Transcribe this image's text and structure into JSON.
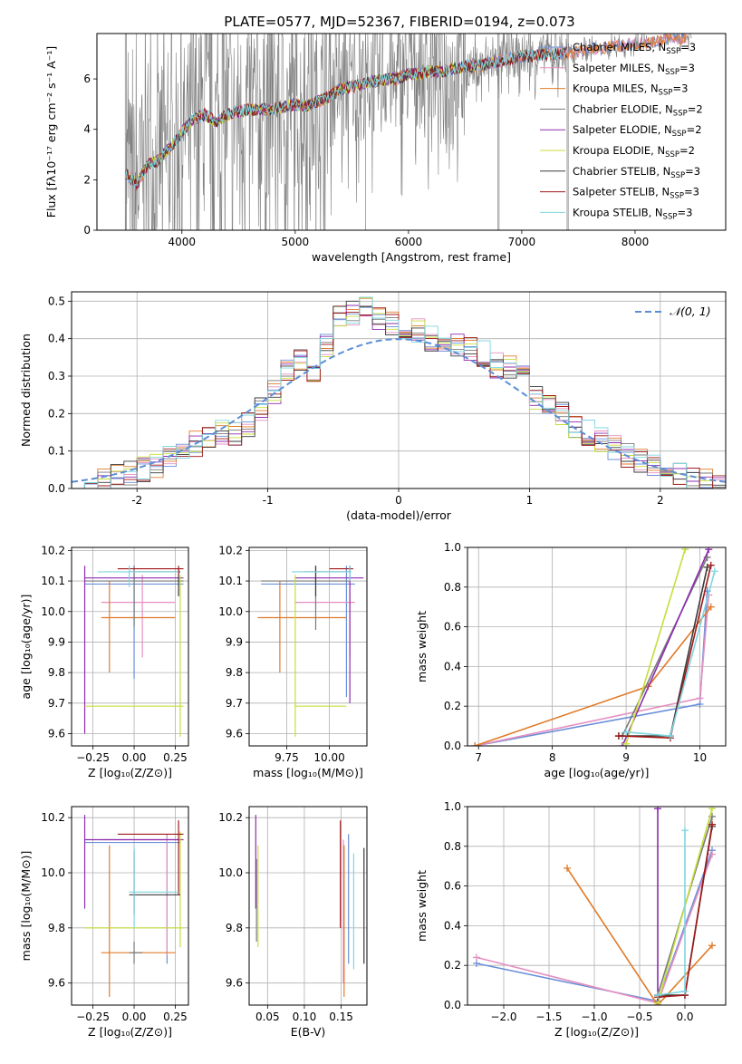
{
  "figure_title": "PLATE=0577, MJD=52367, FIBERID=0194, z=0.073",
  "colors": {
    "chabrier_miles": "#6a8fd8",
    "salpeter_miles": "#e58fc0",
    "kroupa_miles": "#e07b2a",
    "chabrier_elodie": "#7a7a7a",
    "salpeter_elodie": "#8e2db0",
    "kroupa_elodie": "#c8dd3a",
    "chabrier_stelib": "#3a3a3a",
    "salpeter_stelib": "#a01818",
    "kroupa_stelib": "#7fd6e0",
    "data": "#808080",
    "normal": "#5b8ed6"
  },
  "chart_data": [
    {
      "id": "spectrum",
      "type": "line",
      "title": "PLATE=0577, MJD=52367, FIBERID=0194, z=0.073",
      "xlabel": "wavelength [Angstrom, rest frame]",
      "ylabel": "Flux [fλ10⁻¹⁷ erg cm⁻² s⁻¹ A⁻¹]",
      "xlim": [
        3250,
        8800
      ],
      "ylim": [
        0,
        7.8
      ],
      "xticks": [
        4000,
        5000,
        6000,
        7000,
        8000
      ],
      "yticks": [
        0,
        2,
        4,
        6
      ],
      "legend_position": "right",
      "legend": [
        {
          "label": "Chabrier MILES, NSSP=3",
          "color_key": "chabrier_miles"
        },
        {
          "label": "Salpeter MILES, NSSP=3",
          "color_key": "salpeter_miles"
        },
        {
          "label": "Kroupa MILES, NSSP=3",
          "color_key": "kroupa_miles"
        },
        {
          "label": "Chabrier ELODIE, NSSP=2",
          "color_key": "chabrier_elodie"
        },
        {
          "label": "Salpeter ELODIE, NSSP=2",
          "color_key": "salpeter_elodie"
        },
        {
          "label": "Kroupa ELODIE, NSSP=2",
          "color_key": "kroupa_elodie"
        },
        {
          "label": "Chabrier STELIB, NSSP=3",
          "color_key": "chabrier_stelib"
        },
        {
          "label": "Salpeter STELIB, NSSP=3",
          "color_key": "salpeter_stelib"
        },
        {
          "label": "Kroupa STELIB, NSSP=3",
          "color_key": "kroupa_stelib"
        }
      ],
      "model_continuum": [
        [
          3500,
          2.3
        ],
        [
          3600,
          1.8
        ],
        [
          3700,
          2.6
        ],
        [
          3800,
          2.8
        ],
        [
          3900,
          3.3
        ],
        [
          3950,
          3.6
        ],
        [
          4000,
          3.9
        ],
        [
          4100,
          4.4
        ],
        [
          4200,
          4.6
        ],
        [
          4300,
          4.3
        ],
        [
          4400,
          4.6
        ],
        [
          4500,
          4.7
        ],
        [
          4600,
          4.8
        ],
        [
          4700,
          4.8
        ],
        [
          4800,
          4.8
        ],
        [
          4900,
          4.9
        ],
        [
          5000,
          5.0
        ],
        [
          5100,
          4.9
        ],
        [
          5200,
          5.1
        ],
        [
          5300,
          5.3
        ],
        [
          5400,
          5.6
        ],
        [
          5500,
          5.7
        ],
        [
          5600,
          5.8
        ],
        [
          5700,
          5.9
        ],
        [
          5800,
          6.0
        ],
        [
          5900,
          6.0
        ],
        [
          6000,
          6.2
        ],
        [
          6100,
          6.2
        ],
        [
          6200,
          6.3
        ],
        [
          6300,
          6.3
        ],
        [
          6400,
          6.4
        ],
        [
          6500,
          6.5
        ],
        [
          6600,
          6.5
        ],
        [
          6700,
          6.6
        ],
        [
          6800,
          6.7
        ],
        [
          6900,
          6.8
        ],
        [
          7000,
          6.9
        ],
        [
          7100,
          6.9
        ],
        [
          7200,
          7.0
        ],
        [
          7300,
          7.0
        ],
        [
          7400,
          7.0
        ],
        [
          7500,
          7.1
        ],
        [
          7600,
          7.2
        ],
        [
          7700,
          7.2
        ],
        [
          7800,
          7.3
        ],
        [
          7900,
          7.3
        ],
        [
          8000,
          7.4
        ],
        [
          8100,
          7.4
        ],
        [
          8200,
          7.5
        ],
        [
          8300,
          7.6
        ],
        [
          8400,
          7.6
        ],
        [
          8500,
          7.7
        ]
      ]
    },
    {
      "id": "residuals",
      "type": "bar",
      "xlabel": "(data-model)/error",
      "ylabel": "Normed distribution",
      "xlim": [
        -2.5,
        2.5
      ],
      "ylim": [
        0,
        0.525
      ],
      "xticks": [
        -2,
        -1,
        0,
        1,
        2
      ],
      "yticks": [
        0.0,
        0.1,
        0.2,
        0.3,
        0.4,
        0.5
      ],
      "bin_edges": [
        -2.5,
        -2.4,
        -2.3,
        -2.2,
        -2.1,
        -2.0,
        -1.9,
        -1.8,
        -1.7,
        -1.6,
        -1.5,
        -1.4,
        -1.3,
        -1.2,
        -1.1,
        -1.0,
        -0.9,
        -0.8,
        -0.7,
        -0.6,
        -0.5,
        -0.4,
        -0.3,
        -0.2,
        -0.1,
        0.0,
        0.1,
        0.2,
        0.3,
        0.4,
        0.5,
        0.6,
        0.7,
        0.8,
        0.9,
        1.0,
        1.1,
        1.2,
        1.3,
        1.4,
        1.5,
        1.6,
        1.7,
        1.8,
        1.9,
        2.0,
        2.1,
        2.2,
        2.3,
        2.4,
        2.5
      ],
      "hist_heights": [
        0.005,
        0.01,
        0.02,
        0.03,
        0.04,
        0.05,
        0.06,
        0.08,
        0.11,
        0.12,
        0.14,
        0.15,
        0.15,
        0.17,
        0.21,
        0.26,
        0.31,
        0.35,
        0.32,
        0.38,
        0.46,
        0.47,
        0.48,
        0.45,
        0.44,
        0.43,
        0.42,
        0.4,
        0.39,
        0.38,
        0.37,
        0.36,
        0.33,
        0.32,
        0.3,
        0.24,
        0.22,
        0.2,
        0.16,
        0.15,
        0.13,
        0.11,
        0.09,
        0.07,
        0.06,
        0.05,
        0.04,
        0.03,
        0.02,
        0.01
      ],
      "legend": [
        {
          "label": "𝒩(0, 1)",
          "color_key": "normal"
        }
      ],
      "legend_position": "top-right"
    },
    {
      "id": "age-vs-Z",
      "type": "errorbar",
      "xlabel": "Z [log₁₀(Z/Z⊙)]",
      "ylabel": "age  [log₁₀(age/yr)]",
      "xlim": [
        -0.38,
        0.33
      ],
      "ylim": [
        9.56,
        10.21
      ],
      "xticks": [
        -0.25,
        0.0,
        0.25
      ],
      "xticklabels": [
        "−0.25",
        "0.00",
        "0.25"
      ],
      "yticks": [
        9.6,
        9.7,
        9.8,
        9.9,
        10.0,
        10.1,
        10.2
      ],
      "points": [
        {
          "color_key": "chabrier_miles",
          "x": 0.0,
          "xlo": -0.3,
          "xhi": 0.3,
          "y": 10.09,
          "ylo": 9.78,
          "yhi": 10.15
        },
        {
          "color_key": "salpeter_miles",
          "x": 0.05,
          "xlo": -0.2,
          "xhi": 0.25,
          "y": 10.03,
          "ylo": 9.85,
          "yhi": 10.12
        },
        {
          "color_key": "kroupa_miles",
          "x": -0.15,
          "xlo": -0.2,
          "xhi": 0.25,
          "y": 9.98,
          "ylo": 9.8,
          "yhi": 10.1
        },
        {
          "color_key": "chabrier_elodie",
          "x": 0.0,
          "xlo": -0.3,
          "xhi": 0.3,
          "y": 10.1,
          "ylo": 9.95,
          "yhi": 10.15
        },
        {
          "color_key": "salpeter_elodie",
          "x": -0.3,
          "xlo": -0.3,
          "xhi": 0.3,
          "y": 10.11,
          "ylo": 9.6,
          "yhi": 10.15
        },
        {
          "color_key": "kroupa_elodie",
          "x": 0.28,
          "xlo": -0.3,
          "xhi": 0.3,
          "y": 9.69,
          "ylo": 9.59,
          "yhi": 10.12
        },
        {
          "color_key": "chabrier_stelib",
          "x": 0.27,
          "xlo": -0.03,
          "xhi": 0.28,
          "y": 10.13,
          "ylo": 10.05,
          "yhi": 10.14
        },
        {
          "color_key": "salpeter_stelib",
          "x": 0.27,
          "xlo": -0.1,
          "xhi": 0.3,
          "y": 10.14,
          "ylo": 10.12,
          "yhi": 10.15
        },
        {
          "color_key": "kroupa_stelib",
          "x": -0.03,
          "xlo": -0.22,
          "xhi": 0.27,
          "y": 10.13,
          "ylo": 10.08,
          "yhi": 10.15
        }
      ]
    },
    {
      "id": "age-vs-mass",
      "type": "errorbar",
      "xlabel": "mass [log₁₀(M/M⊙)]",
      "xlim": [
        9.53,
        10.22
      ],
      "ylim": [
        9.56,
        10.21
      ],
      "xticks": [
        9.75,
        10.0
      ],
      "xticklabels": [
        "9.75",
        "10.00"
      ],
      "yticks": [
        9.6,
        9.7,
        9.8,
        9.9,
        10.0,
        10.1,
        10.2
      ],
      "points": [
        {
          "color_key": "chabrier_miles",
          "x": 10.1,
          "xlo": 9.6,
          "xhi": 10.15,
          "y": 10.09,
          "ylo": 9.72,
          "yhi": 10.15
        },
        {
          "color_key": "salpeter_miles",
          "x": 10.12,
          "xlo": 9.8,
          "xhi": 10.15,
          "y": 10.03,
          "ylo": 9.85,
          "yhi": 10.12
        },
        {
          "color_key": "kroupa_miles",
          "x": 9.71,
          "xlo": 9.58,
          "xhi": 10.1,
          "y": 9.98,
          "ylo": 9.8,
          "yhi": 10.1
        },
        {
          "color_key": "chabrier_elodie",
          "x": 9.92,
          "xlo": 9.6,
          "xhi": 10.12,
          "y": 10.1,
          "ylo": 9.94,
          "yhi": 10.15
        },
        {
          "color_key": "salpeter_elodie",
          "x": 10.12,
          "xlo": 9.8,
          "xhi": 10.2,
          "y": 10.11,
          "ylo": 9.7,
          "yhi": 10.15
        },
        {
          "color_key": "kroupa_elodie",
          "x": 9.8,
          "xlo": 9.8,
          "xhi": 10.1,
          "y": 9.69,
          "ylo": 9.59,
          "yhi": 10.12
        },
        {
          "color_key": "chabrier_stelib",
          "x": 9.92,
          "xlo": 9.85,
          "xhi": 10.12,
          "y": 10.13,
          "ylo": 10.05,
          "yhi": 10.15
        },
        {
          "color_key": "salpeter_stelib",
          "x": 10.12,
          "xlo": 10.0,
          "xhi": 10.14,
          "y": 10.14,
          "ylo": 10.13,
          "yhi": 10.15
        },
        {
          "color_key": "kroupa_stelib",
          "x": 10.12,
          "xlo": 9.78,
          "xhi": 10.13,
          "y": 10.13,
          "ylo": 10.1,
          "yhi": 10.15
        }
      ]
    },
    {
      "id": "weight-vs-age",
      "type": "line",
      "xlabel": "age  [log₁₀(age/yr)]",
      "ylabel": "mass weight",
      "xlim": [
        6.85,
        10.35
      ],
      "ylim": [
        0,
        1
      ],
      "xticks": [
        7,
        8,
        9,
        10
      ],
      "yticks": [
        0.0,
        0.2,
        0.4,
        0.6,
        0.8,
        1.0
      ],
      "series": [
        {
          "color_key": "chabrier_miles",
          "x": [
            6.95,
            10.0,
            10.1
          ],
          "y": [
            0.0,
            0.21,
            0.78
          ]
        },
        {
          "color_key": "salpeter_miles",
          "x": [
            6.95,
            10.0,
            10.12
          ],
          "y": [
            0.0,
            0.24,
            0.76
          ]
        },
        {
          "color_key": "kroupa_miles",
          "x": [
            6.95,
            9.3,
            10.15
          ],
          "y": [
            0.0,
            0.3,
            0.7
          ]
        },
        {
          "color_key": "chabrier_elodie",
          "x": [
            8.95,
            10.1
          ],
          "y": [
            0.05,
            0.95
          ]
        },
        {
          "color_key": "salpeter_elodie",
          "x": [
            8.95,
            10.12
          ],
          "y": [
            0.0,
            0.99
          ]
        },
        {
          "color_key": "kroupa_elodie",
          "x": [
            9.0,
            9.8
          ],
          "y": [
            0.01,
            0.99
          ]
        },
        {
          "color_key": "chabrier_stelib",
          "x": [
            8.9,
            9.6,
            10.1
          ],
          "y": [
            0.05,
            0.05,
            0.9
          ]
        },
        {
          "color_key": "salpeter_stelib",
          "x": [
            8.9,
            9.6,
            10.15
          ],
          "y": [
            0.05,
            0.04,
            0.91
          ]
        },
        {
          "color_key": "kroupa_stelib",
          "x": [
            9.0,
            9.6,
            10.2
          ],
          "y": [
            0.07,
            0.05,
            0.88
          ]
        }
      ]
    },
    {
      "id": "mass-vs-Z",
      "type": "errorbar",
      "xlabel": "Z [log₁₀(Z/Z⊙)]",
      "ylabel": "mass [log₁₀(M/M⊙)]",
      "xlim": [
        -0.38,
        0.33
      ],
      "ylim": [
        9.52,
        10.24
      ],
      "xticks": [
        -0.25,
        0.0,
        0.25
      ],
      "xticklabels": [
        "−0.25",
        "0.00",
        "0.25"
      ],
      "yticks": [
        9.6,
        9.8,
        10.0,
        10.2
      ],
      "points": [
        {
          "color_key": "chabrier_miles",
          "x": 0.2,
          "xlo": -0.3,
          "xhi": 0.28,
          "y": 10.11,
          "ylo": 9.67,
          "yhi": 10.14
        },
        {
          "color_key": "salpeter_miles",
          "x": 0.2,
          "xlo": -0.2,
          "xhi": 0.28,
          "y": 10.12,
          "ylo": 9.7,
          "yhi": 10.14
        },
        {
          "color_key": "kroupa_miles",
          "x": -0.15,
          "xlo": -0.2,
          "xhi": 0.25,
          "y": 9.71,
          "ylo": 9.55,
          "yhi": 10.1
        },
        {
          "color_key": "chabrier_elodie",
          "x": 0.0,
          "xlo": -0.03,
          "xhi": 0.05,
          "y": 9.71,
          "ylo": 9.67,
          "yhi": 9.75
        },
        {
          "color_key": "salpeter_elodie",
          "x": -0.3,
          "xlo": -0.3,
          "xhi": 0.3,
          "y": 10.12,
          "ylo": 9.87,
          "yhi": 10.21
        },
        {
          "color_key": "kroupa_elodie",
          "x": 0.28,
          "xlo": -0.3,
          "xhi": 0.3,
          "y": 9.8,
          "ylo": 9.73,
          "yhi": 10.15
        },
        {
          "color_key": "chabrier_stelib",
          "x": 0.0,
          "xlo": -0.03,
          "xhi": 0.28,
          "y": 9.92,
          "ylo": 9.85,
          "yhi": 10.08
        },
        {
          "color_key": "salpeter_stelib",
          "x": 0.27,
          "xlo": -0.1,
          "xhi": 0.3,
          "y": 10.14,
          "ylo": 9.92,
          "yhi": 10.19
        },
        {
          "color_key": "kroupa_stelib",
          "x": 0.0,
          "xlo": -0.03,
          "xhi": 0.27,
          "y": 9.93,
          "ylo": 9.8,
          "yhi": 10.1
        }
      ]
    },
    {
      "id": "mass-vs-ebv",
      "type": "errorbar",
      "xlabel": "E(B-V)",
      "xlim": [
        0.025,
        0.185
      ],
      "ylim": [
        9.52,
        10.24
      ],
      "xticks": [
        0.05,
        0.1,
        0.15
      ],
      "xticklabels": [
        "0.05",
        "0.10",
        "0.15"
      ],
      "yticks": [
        9.6,
        9.8,
        10.0,
        10.2
      ],
      "points": [
        {
          "color_key": "chabrier_miles",
          "x": 0.16,
          "ylo": 9.67,
          "yhi": 10.14
        },
        {
          "color_key": "salpeter_miles",
          "x": 0.153,
          "ylo": 9.6,
          "yhi": 10.12
        },
        {
          "color_key": "kroupa_miles",
          "x": 0.154,
          "ylo": 9.55,
          "yhi": 10.1
        },
        {
          "color_key": "chabrier_elodie",
          "x": 0.035,
          "ylo": 9.75,
          "yhi": 10.05
        },
        {
          "color_key": "salpeter_elodie",
          "x": 0.034,
          "ylo": 9.87,
          "yhi": 10.21
        },
        {
          "color_key": "kroupa_elodie",
          "x": 0.037,
          "ylo": 9.73,
          "yhi": 10.1
        },
        {
          "color_key": "chabrier_stelib",
          "x": 0.181,
          "ylo": 9.67,
          "yhi": 10.09
        },
        {
          "color_key": "salpeter_stelib",
          "x": 0.149,
          "ylo": 9.8,
          "yhi": 10.19
        },
        {
          "color_key": "kroupa_stelib",
          "x": 0.167,
          "ylo": 9.65,
          "yhi": 10.07
        }
      ]
    },
    {
      "id": "weight-vs-Z",
      "type": "line",
      "xlabel": "Z [log₁₀(Z/Z⊙)]",
      "ylabel": "mass weight",
      "xlim": [
        -2.4,
        0.45
      ],
      "ylim": [
        0,
        1
      ],
      "xticks": [
        -2.0,
        -1.5,
        -1.0,
        -0.5,
        0.0
      ],
      "xticklabels": [
        "−2.0",
        "−1.5",
        "−1.0",
        "−0.5",
        "0.0"
      ],
      "yticks": [
        0.0,
        0.2,
        0.4,
        0.6,
        0.8,
        1.0
      ],
      "series": [
        {
          "color_key": "chabrier_miles",
          "x": [
            -2.3,
            -0.3,
            0.3
          ],
          "y": [
            0.21,
            0.02,
            0.78
          ]
        },
        {
          "color_key": "salpeter_miles",
          "x": [
            -2.3,
            -0.3,
            0.3
          ],
          "y": [
            0.24,
            0.01,
            0.76
          ]
        },
        {
          "color_key": "kroupa_miles",
          "x": [
            -1.3,
            -0.3,
            0.3
          ],
          "y": [
            0.69,
            0.0,
            0.3
          ]
        },
        {
          "color_key": "chabrier_elodie",
          "x": [
            -0.3,
            0.3
          ],
          "y": [
            0.05,
            0.95
          ]
        },
        {
          "color_key": "salpeter_elodie",
          "x": [
            -0.3,
            -0.3
          ],
          "y": [
            0.0,
            0.99
          ]
        },
        {
          "color_key": "kroupa_elodie",
          "x": [
            -0.3,
            0.3
          ],
          "y": [
            0.01,
            0.99
          ]
        },
        {
          "color_key": "chabrier_stelib",
          "x": [
            -0.3,
            0.0,
            0.3
          ],
          "y": [
            0.05,
            0.05,
            0.9
          ]
        },
        {
          "color_key": "salpeter_stelib",
          "x": [
            -0.3,
            0.0,
            0.3
          ],
          "y": [
            0.04,
            0.05,
            0.91
          ]
        },
        {
          "color_key": "kroupa_stelib",
          "x": [
            -0.3,
            0.0,
            0.0
          ],
          "y": [
            0.05,
            0.07,
            0.88
          ]
        }
      ]
    }
  ]
}
